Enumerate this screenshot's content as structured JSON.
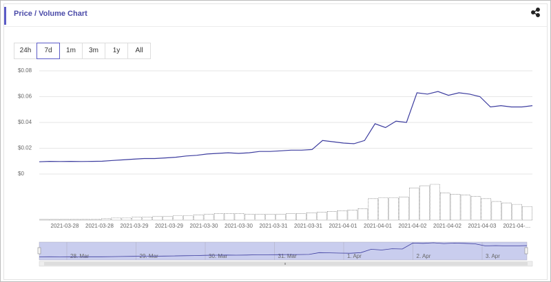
{
  "header": {
    "title": "Price / Volume Chart"
  },
  "range_buttons": [
    "24h",
    "7d",
    "1m",
    "3m",
    "1y",
    "All"
  ],
  "selected_range": "7d",
  "chart_data": {
    "type": "line",
    "yticks": [
      {
        "value": 0,
        "label": "$0"
      },
      {
        "value": 0.02,
        "label": "$0.02"
      },
      {
        "value": 0.04,
        "label": "$0.04"
      },
      {
        "value": 0.06,
        "label": "$0.06"
      },
      {
        "value": 0.08,
        "label": "$0.08"
      }
    ],
    "ylim": [
      0,
      0.08
    ],
    "grid": true,
    "x_labels": [
      "2021-03-28",
      "2021-03-28",
      "2021-03-29",
      "2021-03-29",
      "2021-03-30",
      "2021-03-30",
      "2021-03-31",
      "2021-03-31",
      "2021-04-01",
      "2021-04-01",
      "2021-04-02",
      "2021-04-02",
      "2021-04-03",
      "2021-04-…"
    ],
    "series": [
      {
        "name": "Price",
        "color": "#3b3b9e",
        "values": [
          0.0095,
          0.0098,
          0.0097,
          0.0098,
          0.0097,
          0.0098,
          0.0099,
          0.0105,
          0.011,
          0.0115,
          0.012,
          0.012,
          0.0125,
          0.013,
          0.014,
          0.0145,
          0.0155,
          0.016,
          0.0165,
          0.016,
          0.0165,
          0.0175,
          0.0175,
          0.018,
          0.0185,
          0.0185,
          0.019,
          0.026,
          0.025,
          0.024,
          0.0235,
          0.026,
          0.039,
          0.036,
          0.041,
          0.04,
          0.063,
          0.062,
          0.064,
          0.061,
          0.063,
          0.062,
          0.06,
          0.052,
          0.053,
          0.052,
          0.052,
          0.053
        ]
      },
      {
        "name": "Volume",
        "color": "#555555",
        "values": [
          1,
          1,
          1,
          1,
          1,
          1,
          2,
          3,
          3,
          4,
          4,
          5,
          5,
          6,
          6,
          7,
          8,
          9,
          9,
          9,
          8,
          8,
          8,
          8,
          9,
          9,
          10,
          11,
          12,
          13,
          14,
          16,
          30,
          31,
          31,
          32,
          45,
          48,
          50,
          38,
          36,
          35,
          33,
          30,
          26,
          24,
          22,
          19
        ]
      }
    ],
    "navigator_labels": [
      "28. Mar",
      "29. Mar",
      "30. Mar",
      "31. Mar",
      "1. Apr",
      "2. Apr",
      "3. Apr"
    ]
  }
}
